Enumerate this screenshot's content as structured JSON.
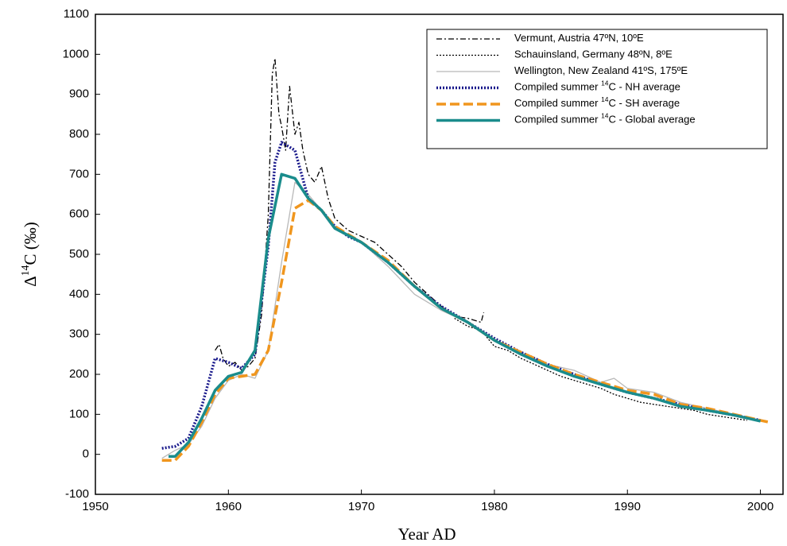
{
  "chart_data": {
    "type": "line",
    "xlabel": "Year AD",
    "ylabel": "Δ14C (‰)",
    "xlim": [
      1950,
      2001.7
    ],
    "ylim": [
      -100,
      1100
    ],
    "xticks": [
      1950,
      1960,
      1970,
      1980,
      1990,
      2000
    ],
    "yticks": [
      -100,
      0,
      100,
      200,
      300,
      400,
      500,
      600,
      700,
      800,
      900,
      1000,
      1100
    ],
    "legend": "upper right",
    "series": [
      {
        "name": "Vermunt, Austria 47ºN, 10ºE",
        "color": "#000000",
        "linestyle": "dashdot",
        "weight": "thin",
        "x": [
          1959,
          1959.3,
          1959.6,
          1960,
          1960.5,
          1961,
          1961.5,
          1962,
          1962.5,
          1963,
          1963.3,
          1963.5,
          1963.8,
          1964,
          1964.3,
          1964.6,
          1965,
          1965.3,
          1965.6,
          1966,
          1966.5,
          1967,
          1967.5,
          1968,
          1969,
          1970,
          1971,
          1972,
          1973,
          1974,
          1975,
          1976,
          1977,
          1978,
          1979,
          1979.2
        ],
        "values": [
          260,
          275,
          240,
          220,
          230,
          210,
          220,
          240,
          350,
          600,
          950,
          990,
          850,
          820,
          760,
          920,
          800,
          830,
          760,
          700,
          680,
          720,
          640,
          590,
          560,
          545,
          530,
          500,
          470,
          430,
          400,
          370,
          345,
          340,
          330,
          355
        ]
      },
      {
        "name": "Schauinsland, Germany 48ºN, 8ºE",
        "color": "#000000",
        "linestyle": "dotted",
        "weight": "thin",
        "x": [
          1977,
          1978,
          1979,
          1980,
          1981,
          1982,
          1983,
          1984,
          1985,
          1986,
          1987,
          1988,
          1989,
          1990,
          1991,
          1992,
          1993,
          1994,
          1995,
          1996,
          1997,
          1998,
          1999
        ],
        "values": [
          340,
          320,
          310,
          270,
          260,
          240,
          225,
          210,
          195,
          185,
          175,
          165,
          150,
          140,
          130,
          125,
          120,
          115,
          110,
          100,
          95,
          90,
          85
        ]
      },
      {
        "name": "Wellington, New Zealand 41ºS, 175ºE",
        "color": "#b8b8b8",
        "linestyle": "solid",
        "weight": "thin",
        "x": [
          1955,
          1956,
          1957,
          1958,
          1959,
          1960,
          1961,
          1962,
          1963,
          1964,
          1965,
          1966,
          1967,
          1968,
          1970,
          1972,
          1974,
          1975,
          1976,
          1978,
          1980,
          1982,
          1984,
          1986,
          1988,
          1989,
          1990,
          1992,
          1994,
          1996,
          1998,
          2000
        ],
        "values": [
          -10,
          10,
          25,
          70,
          140,
          185,
          200,
          190,
          260,
          480,
          680,
          650,
          610,
          570,
          530,
          470,
          400,
          380,
          360,
          330,
          285,
          255,
          225,
          210,
          180,
          190,
          165,
          155,
          130,
          115,
          100,
          85
        ]
      },
      {
        "name": "Compiled summer 14C - NH average",
        "color": "#1a1a8c",
        "linestyle": "dotted",
        "weight": "thick",
        "x": [
          1955,
          1956,
          1957,
          1958,
          1959,
          1960,
          1961,
          1962,
          1963,
          1963.5,
          1964,
          1965,
          1966,
          1967,
          1968,
          1969,
          1970,
          1972,
          1974,
          1976,
          1978,
          1980,
          1982,
          1984,
          1986,
          1988,
          1990,
          1992,
          1994,
          1996,
          1998,
          2000
        ],
        "values": [
          15,
          20,
          40,
          120,
          240,
          230,
          215,
          250,
          520,
          730,
          780,
          760,
          640,
          610,
          570,
          545,
          530,
          480,
          420,
          370,
          330,
          290,
          255,
          225,
          200,
          175,
          155,
          140,
          125,
          110,
          98,
          85
        ]
      },
      {
        "name": "Compiled summer 14C - SH average",
        "color": "#f0961e",
        "linestyle": "dashed",
        "weight": "thick",
        "x": [
          1955,
          1956,
          1957,
          1958,
          1959,
          1960,
          1961,
          1962,
          1963,
          1964,
          1965,
          1966,
          1967,
          1968,
          1970,
          1972,
          1974,
          1976,
          1978,
          1980,
          1982,
          1984,
          1986,
          1988,
          1990,
          1992,
          1994,
          1996,
          1998,
          2000,
          2000.7
        ],
        "values": [
          -15,
          -15,
          20,
          80,
          150,
          190,
          195,
          200,
          260,
          430,
          615,
          635,
          610,
          570,
          530,
          485,
          420,
          365,
          330,
          285,
          255,
          225,
          200,
          180,
          160,
          150,
          125,
          115,
          100,
          85,
          80
        ]
      },
      {
        "name": "Compiled summer 14C - Global average",
        "color": "#1a8c8c",
        "linestyle": "solid",
        "weight": "thick",
        "x": [
          1955.5,
          1956,
          1957,
          1958,
          1959,
          1960,
          1961,
          1962,
          1963,
          1964,
          1965,
          1966,
          1967,
          1968,
          1970,
          1972,
          1974,
          1976,
          1978,
          1980,
          1982,
          1984,
          1986,
          1988,
          1990,
          1992,
          1994,
          1996,
          1998,
          2000
        ],
        "values": [
          -5,
          -5,
          30,
          90,
          160,
          195,
          205,
          260,
          540,
          700,
          690,
          640,
          610,
          565,
          530,
          480,
          420,
          365,
          330,
          285,
          250,
          220,
          195,
          175,
          155,
          140,
          120,
          110,
          98,
          83
        ]
      }
    ]
  }
}
